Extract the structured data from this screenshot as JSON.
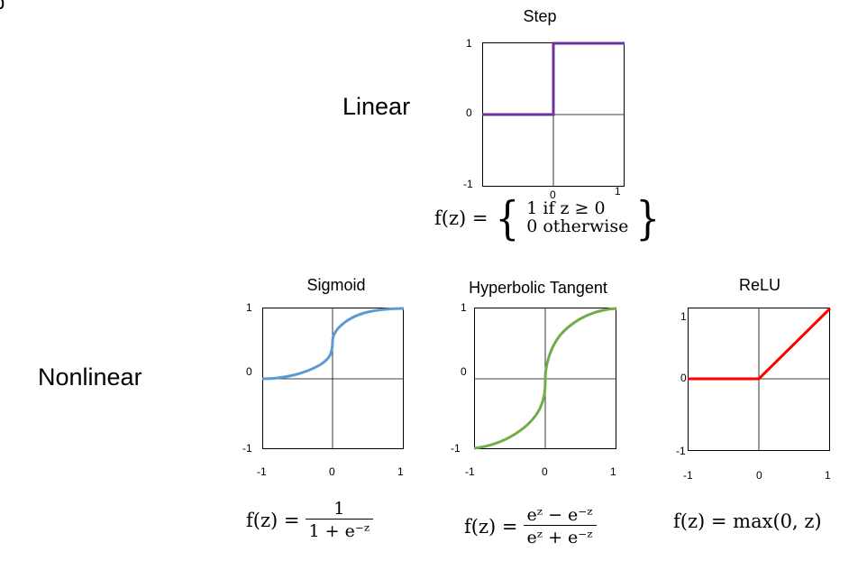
{
  "fragment_letter": "b",
  "rows": {
    "linear_label": "Linear",
    "nonlinear_label": "Nonlinear"
  },
  "panels": {
    "step": {
      "title": "Step",
      "formula": {
        "lhs": "f(z) =",
        "case1": "1 if z ≥ 0",
        "case2": "0 otherwise"
      },
      "y_ticks": [
        "1",
        "0",
        "-1"
      ],
      "x_ticks": [
        "0",
        "1"
      ],
      "line_color": "#7030a0"
    },
    "sigmoid": {
      "title": "Sigmoid",
      "formula": {
        "lhs": "f(z) =",
        "numerator": "1",
        "denominator": "1 + e⁻ᶻ"
      },
      "y_ticks": [
        "1",
        "0",
        "-1"
      ],
      "x_ticks": [
        "-1",
        "0",
        "1"
      ],
      "line_color": "#5b9bd5"
    },
    "tanh": {
      "title": "Hyperbolic Tangent",
      "formula": {
        "lhs": "f(z) =",
        "numerator": "eᶻ − e⁻ᶻ",
        "denominator": "eᶻ + e⁻ᶻ"
      },
      "y_ticks": [
        "1",
        "0",
        "-1"
      ],
      "x_ticks": [
        "-1",
        "0",
        "1"
      ],
      "line_color": "#70ad47"
    },
    "relu": {
      "title": "ReLU",
      "formula": {
        "text": "f(z) = max(0, z)"
      },
      "y_ticks": [
        "1",
        "0",
        "-1"
      ],
      "x_ticks": [
        "-1",
        "0",
        "1"
      ],
      "line_color": "#ff0000"
    }
  }
}
